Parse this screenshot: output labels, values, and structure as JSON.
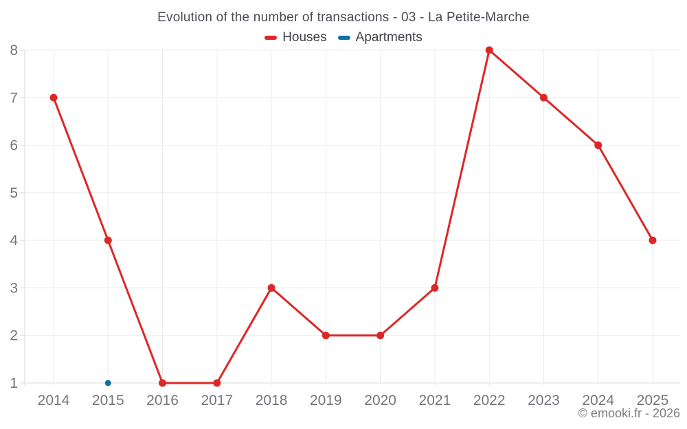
{
  "chart_data": {
    "type": "line",
    "title": "Evolution of the number of transactions - 03 - La Petite-Marche",
    "categories": [
      "2014",
      "2015",
      "2016",
      "2017",
      "2018",
      "2019",
      "2020",
      "2021",
      "2022",
      "2023",
      "2024",
      "2025"
    ],
    "series": [
      {
        "name": "Houses",
        "color": "#dd2727",
        "values": [
          7,
          4,
          1,
          1,
          3,
          2,
          2,
          3,
          8,
          7,
          6,
          4
        ],
        "marker_radius": 5.5,
        "line_width": 3
      },
      {
        "name": "Apartments",
        "color": "#0e72a5",
        "values": [
          null,
          1,
          null,
          null,
          null,
          null,
          null,
          null,
          null,
          null,
          null,
          null
        ],
        "marker_radius": 4.5,
        "line_width": 3
      }
    ],
    "xlabel": "",
    "ylabel": "",
    "ylim": [
      1,
      8
    ],
    "yticks": [
      1,
      2,
      3,
      4,
      5,
      6,
      7,
      8
    ],
    "grid": true,
    "legend_position": "top"
  },
  "footer": {
    "copyright": "© emooki.fr - 2026"
  },
  "style_colors": {
    "grid": "#ececec",
    "axis": "#d8d8d8",
    "tick_label": "#75767c",
    "title_text": "#4a4b52",
    "legend_text": "#3f4048",
    "footer_text": "#7c7d84"
  }
}
